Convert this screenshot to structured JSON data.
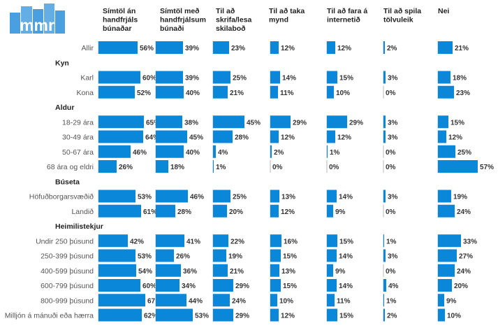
{
  "logo": {
    "text": "mmr",
    "color": "#4a9fe0"
  },
  "colors": {
    "bar": "#0b87d9",
    "grid": "#b8b8b8",
    "group_text": "#222222"
  },
  "chart_data": {
    "type": "bar",
    "orientation": "horizontal",
    "columns": [
      [
        "Símtöl án",
        "handfrjáls",
        "búnaðar"
      ],
      [
        "Símtöl með",
        "handfrjálsum",
        "búnaði"
      ],
      [
        "Til að",
        "skrifa/lesa",
        "skilaboð"
      ],
      [
        "Til að taka",
        "mynd"
      ],
      [
        "Til að fara á",
        "internetið"
      ],
      [
        "Til að spila",
        "tölvuleik"
      ],
      [
        "Nei"
      ]
    ],
    "unit": "%",
    "rows": [
      {
        "label": "Allir",
        "group": false,
        "values": [
          56,
          39,
          23,
          12,
          12,
          2,
          21
        ]
      },
      {
        "label": "Kyn",
        "group": true
      },
      {
        "label": "Karl",
        "group": false,
        "values": [
          60,
          39,
          25,
          14,
          15,
          3,
          18
        ]
      },
      {
        "label": "Kona",
        "group": false,
        "values": [
          52,
          40,
          21,
          11,
          10,
          0,
          23
        ]
      },
      {
        "label": "Aldur",
        "group": true
      },
      {
        "label": "18-29 ára",
        "group": false,
        "values": [
          65,
          38,
          45,
          29,
          29,
          3,
          15
        ]
      },
      {
        "label": "30-49 ára",
        "group": false,
        "values": [
          64,
          45,
          28,
          12,
          12,
          3,
          12
        ]
      },
      {
        "label": "50-67 ára",
        "group": false,
        "values": [
          46,
          40,
          4,
          2,
          1,
          0,
          25
        ]
      },
      {
        "label": "68 ára og eldri",
        "group": false,
        "values": [
          26,
          18,
          1,
          0,
          0,
          0,
          57
        ]
      },
      {
        "label": "Búseta",
        "group": true
      },
      {
        "label": "Höfuðborgarsvæðið",
        "group": false,
        "values": [
          53,
          46,
          25,
          13,
          14,
          3,
          19
        ]
      },
      {
        "label": "Landið",
        "group": false,
        "values": [
          61,
          28,
          20,
          12,
          9,
          0,
          24
        ]
      },
      {
        "label": "Heimilistekjur",
        "group": true
      },
      {
        "label": "Undir 250 þúsund",
        "group": false,
        "values": [
          42,
          41,
          22,
          16,
          15,
          1,
          33
        ]
      },
      {
        "label": "250-399 þúsund",
        "group": false,
        "values": [
          53,
          26,
          19,
          15,
          14,
          3,
          27
        ]
      },
      {
        "label": "400-599 þúsund",
        "group": false,
        "values": [
          54,
          36,
          21,
          13,
          9,
          0,
          24
        ]
      },
      {
        "label": "600-799 þúsund",
        "group": false,
        "values": [
          60,
          34,
          29,
          15,
          14,
          4,
          20
        ]
      },
      {
        "label": "800-999 þúsund",
        "group": false,
        "values": [
          67,
          44,
          24,
          10,
          11,
          1,
          9
        ]
      },
      {
        "label": "Milljón á mánuði eða hærra",
        "group": false,
        "values": [
          62,
          53,
          29,
          12,
          15,
          2,
          10
        ]
      }
    ]
  }
}
